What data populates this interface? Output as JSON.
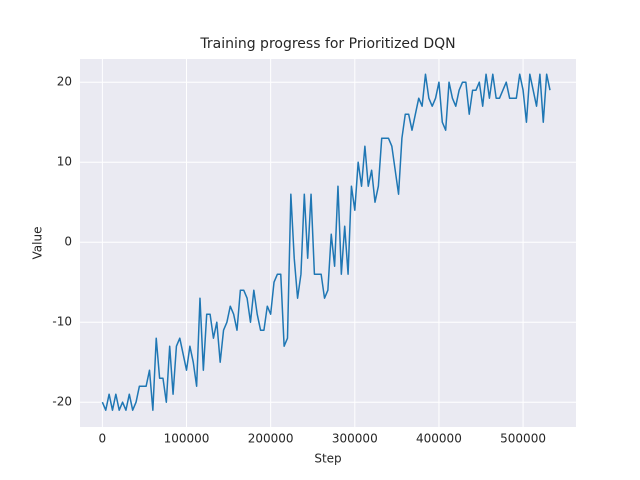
{
  "chart_data": {
    "type": "line",
    "title": "Training progress for Prioritized DQN",
    "x_label": "Step",
    "y_label": "Value",
    "x": [
      0,
      4000,
      8000,
      12000,
      16000,
      20000,
      24000,
      28000,
      32000,
      36000,
      40000,
      44000,
      48000,
      52000,
      56000,
      60000,
      64000,
      68000,
      72000,
      76000,
      80000,
      84000,
      88000,
      92000,
      96000,
      100000,
      104000,
      108000,
      112000,
      116000,
      120000,
      124000,
      128000,
      132000,
      136000,
      140000,
      144000,
      148000,
      152000,
      156000,
      160000,
      164000,
      168000,
      172000,
      176000,
      180000,
      184000,
      188000,
      192000,
      196000,
      200000,
      204000,
      208000,
      212000,
      216000,
      220000,
      224000,
      228000,
      232000,
      236000,
      240000,
      244000,
      248000,
      252000,
      256000,
      260000,
      264000,
      268000,
      272000,
      276000,
      280000,
      284000,
      288000,
      292000,
      296000,
      300000,
      304000,
      308000,
      312000,
      316000,
      320000,
      324000,
      328000,
      332000,
      336000,
      340000,
      344000,
      348000,
      352000,
      356000,
      360000,
      364000,
      368000,
      372000,
      376000,
      380000,
      384000,
      388000,
      392000,
      396000,
      400000,
      404000,
      408000,
      412000,
      416000,
      420000,
      424000,
      428000,
      432000,
      436000,
      440000,
      444000,
      448000,
      452000,
      456000,
      460000,
      464000,
      468000,
      472000,
      476000,
      480000,
      484000,
      488000,
      492000,
      496000,
      500000,
      504000,
      508000,
      512000,
      516000,
      520000,
      524000,
      528000,
      532000
    ],
    "series": [
      {
        "color": "#1f77b4",
        "values": [
          -20,
          -21,
          -19,
          -21,
          -19,
          -21,
          -20,
          -21,
          -19,
          -21,
          -20,
          -18,
          -18,
          -18,
          -16,
          -21,
          -12,
          -17,
          -17,
          -20,
          -13,
          -19,
          -13,
          -12,
          -14,
          -16,
          -13,
          -15,
          -18,
          -7,
          -16,
          -9,
          -9,
          -12,
          -10,
          -15,
          -11,
          -10,
          -8,
          -9,
          -11,
          -6,
          -6,
          -7,
          -10,
          -6,
          -9,
          -11,
          -11,
          -8,
          -9,
          -5,
          -4,
          -4,
          -13,
          -12,
          6,
          -2,
          -7,
          -4,
          6,
          -2,
          6,
          -4,
          -4,
          -4,
          -7,
          -6,
          1,
          -3,
          7,
          -4,
          2,
          -4,
          7,
          4,
          10,
          7,
          12,
          7,
          9,
          5,
          7,
          13,
          13,
          13,
          12,
          9,
          6,
          13,
          16,
          16,
          14,
          16,
          18,
          17,
          21,
          18,
          17,
          18,
          20,
          15,
          14,
          20,
          18,
          17,
          19,
          20,
          20,
          16,
          19,
          19,
          20,
          17,
          21,
          18,
          21,
          18,
          18,
          19,
          20,
          18,
          18,
          18,
          21,
          19,
          15,
          21,
          19,
          17,
          21,
          15,
          21,
          19
        ]
      }
    ],
    "xlim": [
      -26600,
      562900
    ],
    "ylim": [
      -23.1,
      22.9
    ],
    "xticks": [
      0,
      100000,
      200000,
      300000,
      400000,
      500000
    ],
    "yticks": [
      -20,
      -10,
      0,
      10,
      20
    ],
    "grid": true
  }
}
